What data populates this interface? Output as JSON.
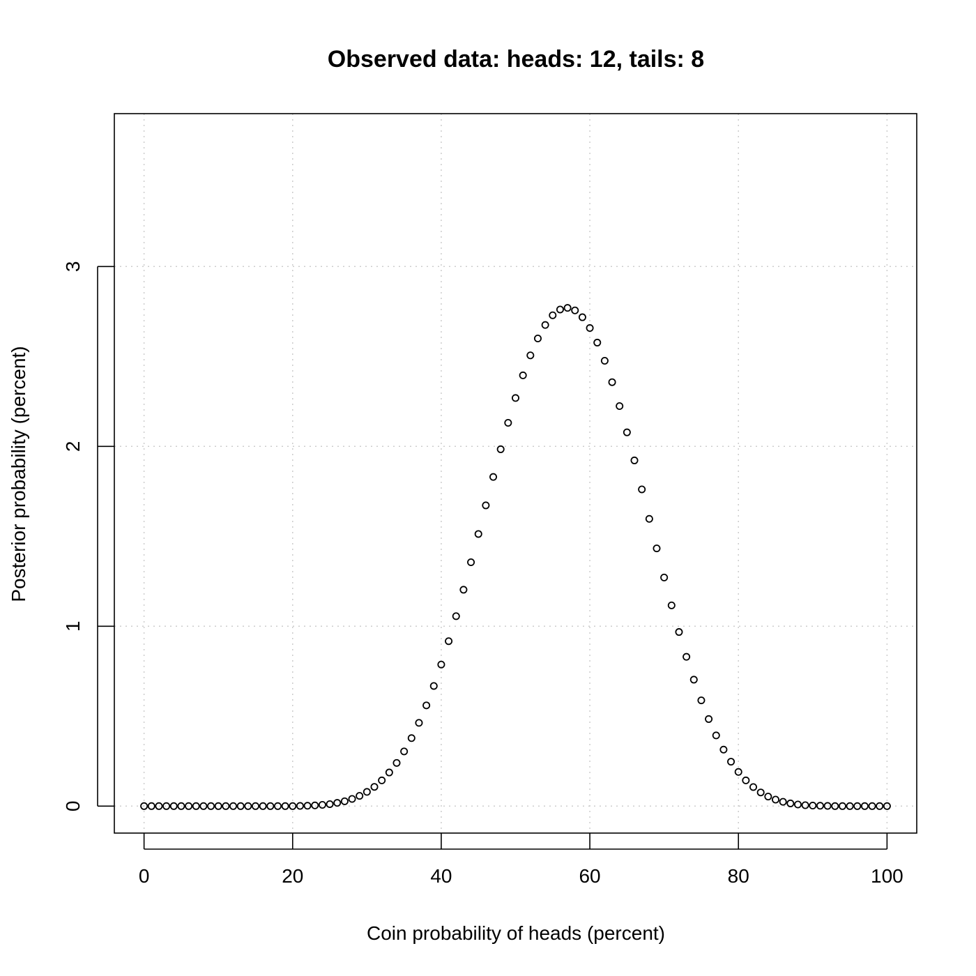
{
  "chart_data": {
    "type": "scatter",
    "title": "Observed data: heads: 12, tails: 8",
    "xlabel": "Coin probability of heads (percent)",
    "ylabel": "Posterior probability (percent)",
    "xlim": [
      -4,
      104
    ],
    "ylim": [
      -0.15,
      3.85
    ],
    "x_ticks": [
      0,
      20,
      40,
      60,
      80,
      100
    ],
    "y_ticks": [
      0,
      1,
      2,
      3
    ],
    "x_tick_labels": [
      "0",
      "20",
      "40",
      "60",
      "80",
      "100"
    ],
    "y_tick_labels": [
      "0",
      "1",
      "2",
      "3"
    ],
    "grid": true,
    "marker": "open-circle",
    "color": "#000000",
    "grid_color": "#cccccc",
    "series": [
      {
        "x": [
          0,
          1,
          2,
          3,
          4,
          5,
          6,
          7,
          8,
          9,
          10,
          11,
          12,
          13,
          14,
          15,
          16,
          17,
          18,
          19,
          20,
          21,
          22,
          23,
          24,
          25,
          26,
          27,
          28,
          29,
          30,
          31,
          32,
          33,
          34,
          35,
          36,
          37,
          38,
          39,
          40,
          41,
          42,
          43,
          44,
          45,
          46,
          47,
          48,
          49,
          50,
          51,
          52,
          53,
          54,
          55,
          56,
          57,
          58,
          59,
          60,
          61,
          62,
          63,
          64,
          65,
          66,
          67,
          68,
          69,
          70,
          71,
          72,
          73,
          74,
          75,
          76,
          77,
          78,
          79,
          80,
          81,
          82,
          83,
          84,
          85,
          86,
          87,
          88,
          89,
          90,
          91,
          92,
          93,
          94,
          95,
          96,
          97,
          98,
          99,
          100
        ],
        "y": [
          0,
          0,
          0,
          0,
          0,
          0,
          0,
          0,
          0,
          0,
          0,
          0,
          0,
          0,
          0,
          0,
          0,
          0,
          0,
          0,
          0,
          0.001,
          0.002,
          0.004,
          0.007,
          0.011,
          0.018,
          0.027,
          0.04,
          0.057,
          0.079,
          0.107,
          0.143,
          0.187,
          0.24,
          0.304,
          0.378,
          0.463,
          0.56,
          0.668,
          0.787,
          0.917,
          1.056,
          1.203,
          1.356,
          1.513,
          1.672,
          1.83,
          1.984,
          2.131,
          2.269,
          2.395,
          2.506,
          2.6,
          2.675,
          2.729,
          2.761,
          2.77,
          2.756,
          2.718,
          2.658,
          2.577,
          2.476,
          2.357,
          2.224,
          2.078,
          1.922,
          1.761,
          1.597,
          1.433,
          1.271,
          1.116,
          0.968,
          0.83,
          0.703,
          0.588,
          0.484,
          0.393,
          0.314,
          0.247,
          0.19,
          0.143,
          0.106,
          0.076,
          0.053,
          0.036,
          0.024,
          0.015,
          0.009,
          0.005,
          0.003,
          0.002,
          0.001,
          0,
          0,
          0,
          0,
          0,
          0,
          0,
          0
        ]
      }
    ]
  }
}
